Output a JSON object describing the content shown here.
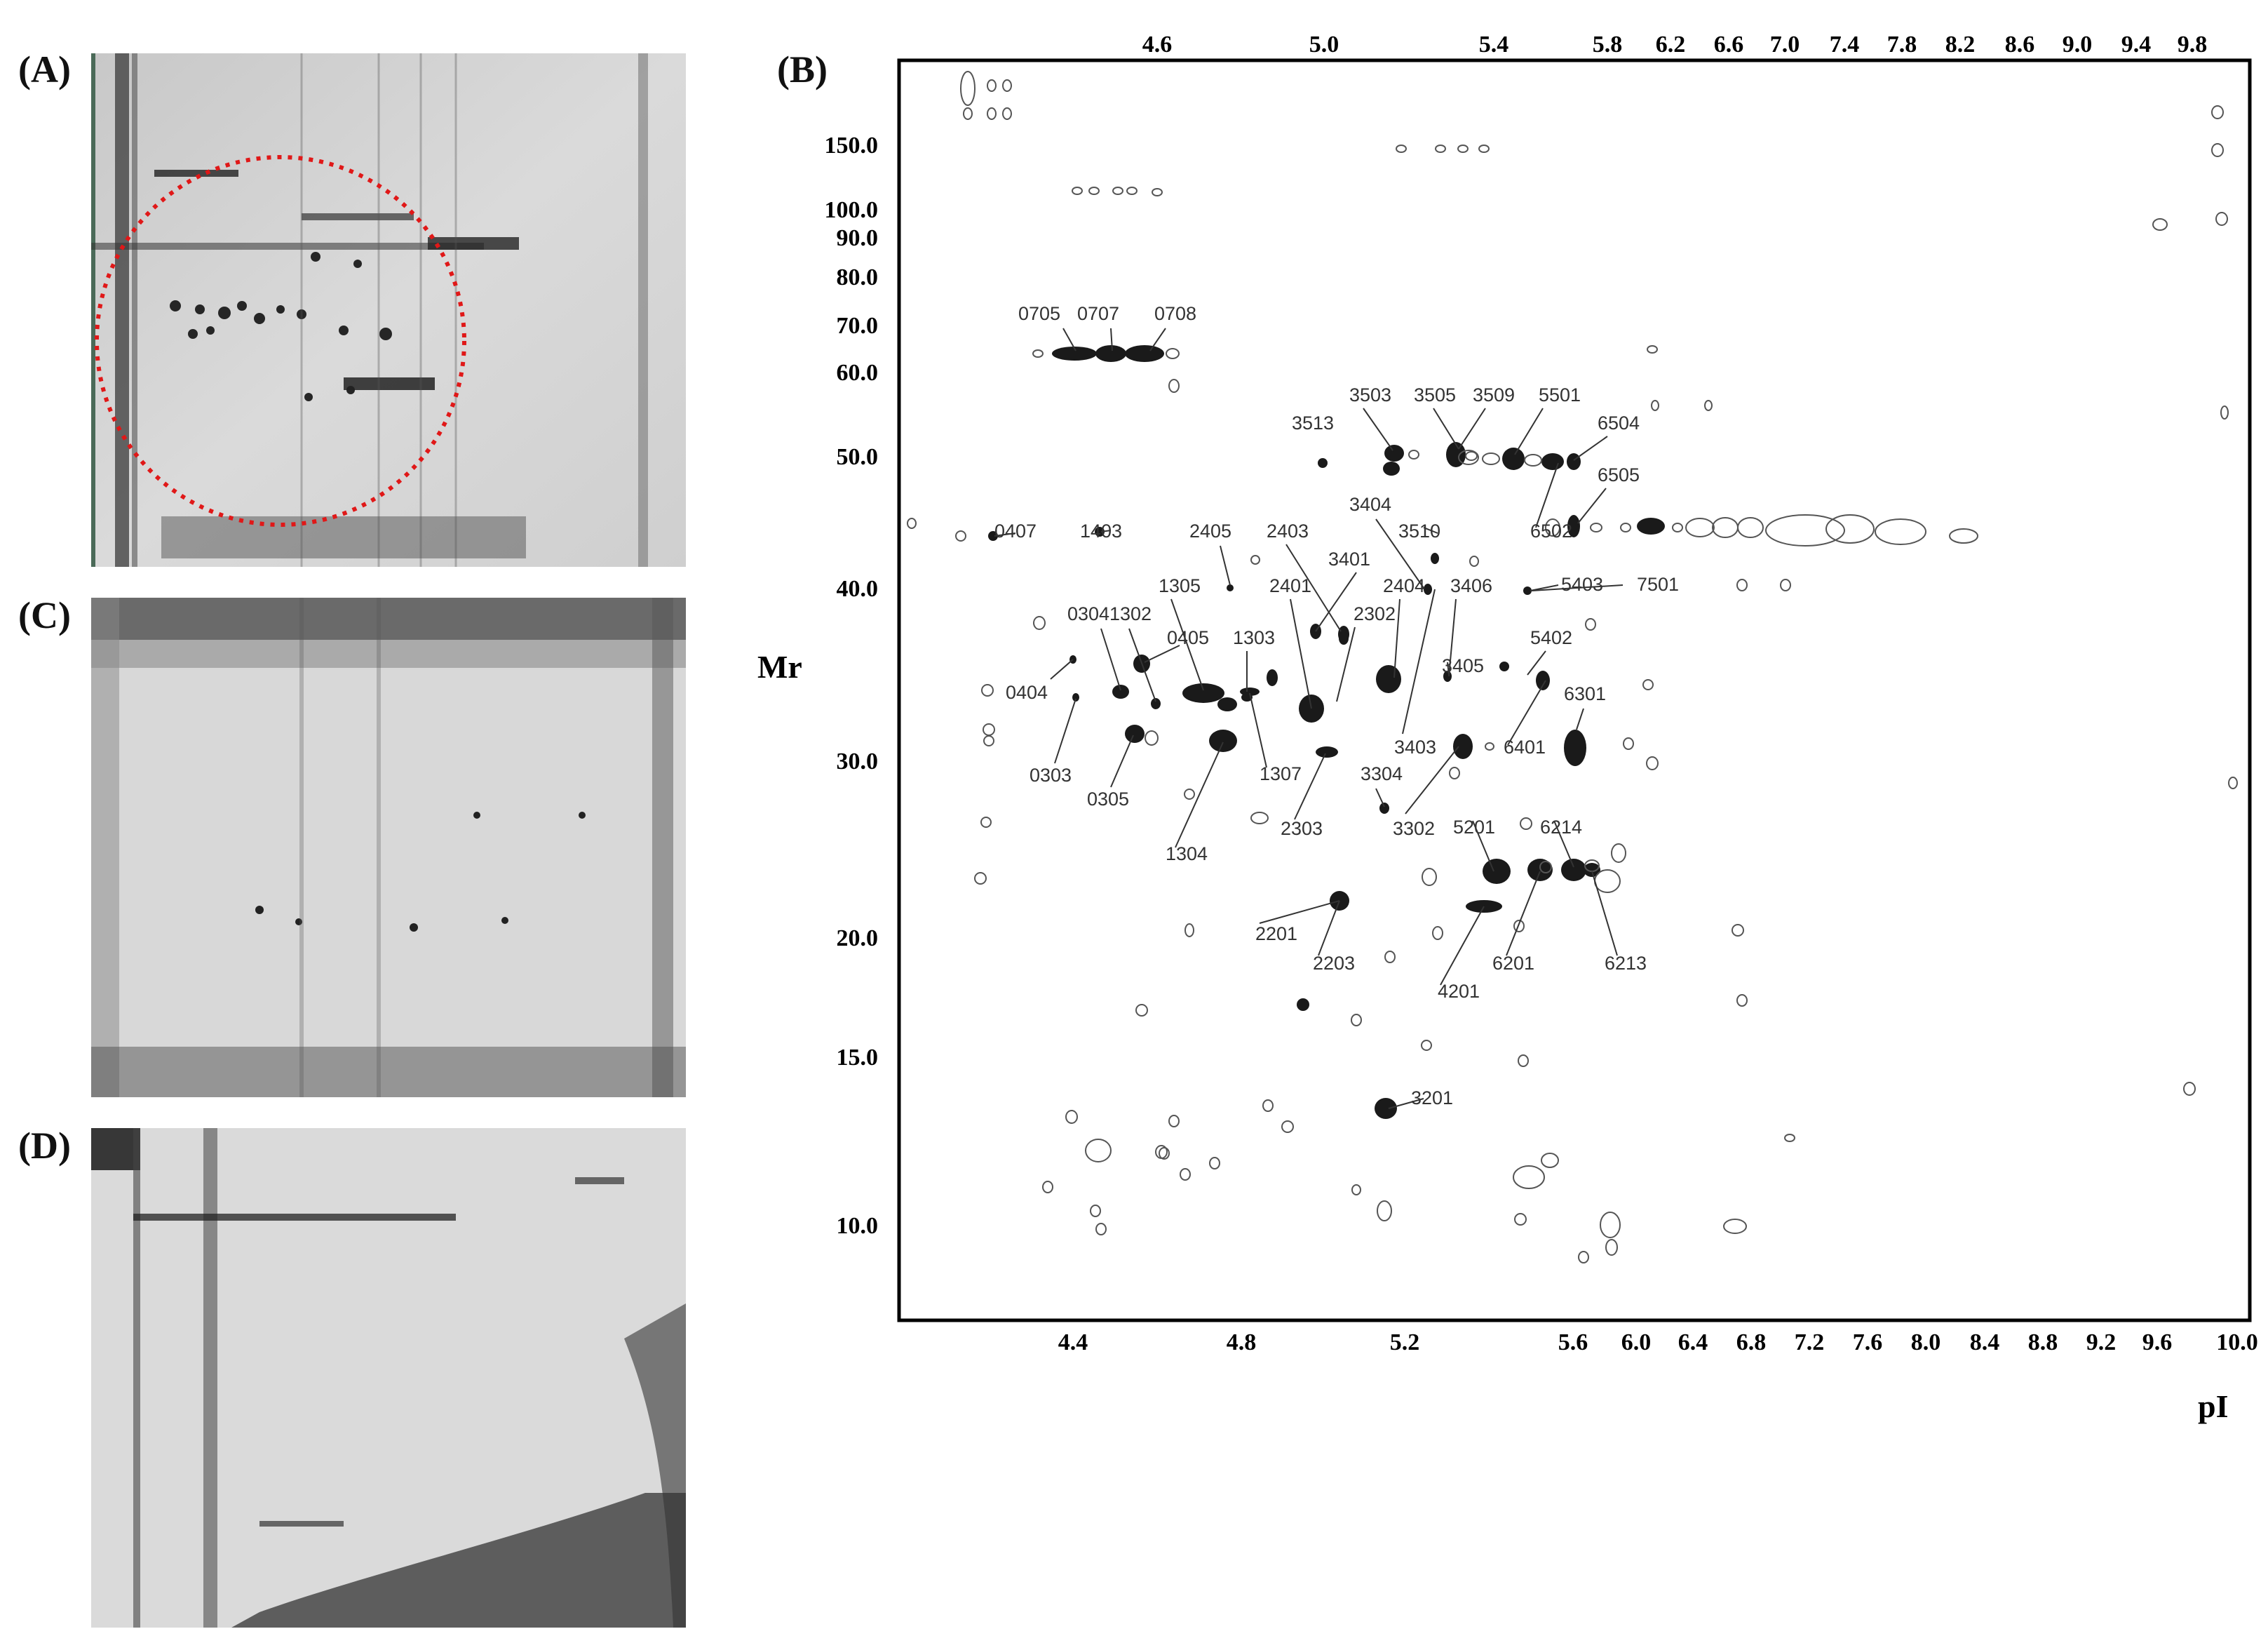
{
  "figure": {
    "panels": {
      "A": {
        "label": "(A)"
      },
      "B": {
        "label": "(B)"
      },
      "C": {
        "label": "(C)"
      },
      "D": {
        "label": "(D)"
      }
    },
    "colors": {
      "ink": "#000000",
      "gel_background": "#d6d6d6",
      "circle_highlight": "#e01818"
    }
  },
  "panelB": {
    "top_axis_ticks": [
      "4.6",
      "5.0",
      "5.4",
      "5.8",
      "6.2",
      "6.6",
      "7.0",
      "7.4",
      "7.8",
      "8.2",
      "8.6",
      "9.0",
      "9.4",
      "9.8"
    ],
    "bottom_axis_ticks": [
      "4.4",
      "4.8",
      "5.2",
      "5.6",
      "6.0",
      "6.4",
      "6.8",
      "7.2",
      "7.6",
      "8.0",
      "8.4",
      "8.8",
      "9.2",
      "9.6",
      "10.0"
    ],
    "y_axis_ticks": [
      "150.0",
      "100.0",
      "90.0",
      "80.0",
      "70.0",
      "60.0",
      "50.0",
      "40.0",
      "30.0",
      "20.0",
      "15.0",
      "10.0"
    ],
    "y_label": "Mr",
    "x_label": "pI",
    "spot_labels": [
      "0705",
      "0707",
      "0708",
      "3503",
      "3505",
      "3509",
      "5501",
      "3513",
      "6504",
      "6505",
      "3404",
      "6502",
      "3510",
      "0407",
      "1403",
      "2405",
      "2403",
      "3401",
      "7501",
      "5403",
      "1305",
      "2401",
      "2404",
      "3406",
      "0304",
      "1302",
      "0405",
      "1303",
      "2302",
      "5402",
      "3405",
      "0404",
      "6301",
      "0303",
      "0305",
      "3403",
      "6401",
      "1307",
      "3304",
      "2303",
      "3302",
      "5201",
      "6214",
      "1304",
      "2201",
      "2203",
      "6201",
      "6213",
      "4201",
      "3201"
    ]
  }
}
